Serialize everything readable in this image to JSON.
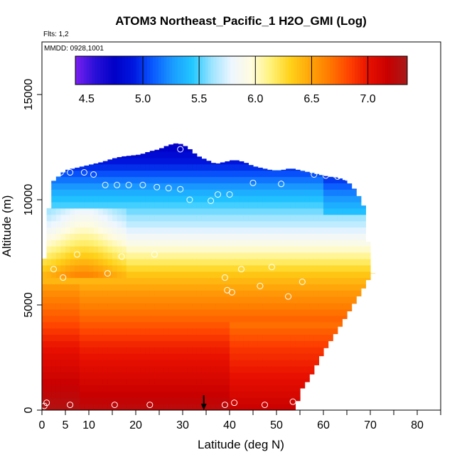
{
  "chart_data": {
    "type": "heatmap",
    "title": "ATOM3 Northeast_Pacific_1 H2O_GMI (Log)",
    "subtitle": "Flts: 1,2",
    "annotation": "MMDD: 0928,1001",
    "xlabel": "Latitude (deg N)",
    "ylabel": "Altitude (m)",
    "xlim": [
      0,
      85
    ],
    "ylim": [
      0,
      17500
    ],
    "x_ticks": [
      0,
      5,
      10,
      20,
      30,
      40,
      50,
      60,
      70,
      80
    ],
    "x_minor_ticks": [
      15,
      25,
      35,
      45,
      55,
      65,
      75,
      85
    ],
    "y_ticks": [
      0,
      5000,
      10000,
      15000
    ],
    "colorbar": {
      "min": 4.4,
      "max": 7.35,
      "ticks": [
        4.5,
        5.0,
        5.5,
        6.0,
        6.5,
        7.0
      ],
      "tick_labels": [
        "4.5",
        "5.0",
        "5.5",
        "6.0",
        "6.5",
        "7.0"
      ],
      "colors": [
        "#7a1ff0",
        "#2a10d8",
        "#0000c8",
        "#0018e0",
        "#0a5cff",
        "#1a9cff",
        "#22c8ff",
        "#9ee4ff",
        "#eef6ff",
        "#fffce0",
        "#fff27a",
        "#ffd21a",
        "#ffa60a",
        "#ff7a00",
        "#ff4400",
        "#e81000",
        "#c80000",
        "#a81a1a"
      ]
    },
    "profile_columns": [
      {
        "lat": 0.5,
        "top": 7200
      },
      {
        "lat": 1.5,
        "top": 9600
      },
      {
        "lat": 2.5,
        "top": 10900
      },
      {
        "lat": 3.5,
        "top": 11100
      },
      {
        "lat": 5,
        "top": 11400
      },
      {
        "lat": 7,
        "top": 11500
      },
      {
        "lat": 9,
        "top": 11600
      },
      {
        "lat": 11,
        "top": 11700
      },
      {
        "lat": 13,
        "top": 11800
      },
      {
        "lat": 15,
        "top": 11950
      },
      {
        "lat": 17,
        "top": 12050
      },
      {
        "lat": 19,
        "top": 12100
      },
      {
        "lat": 21,
        "top": 12150
      },
      {
        "lat": 23,
        "top": 12300
      },
      {
        "lat": 25,
        "top": 12400
      },
      {
        "lat": 27,
        "top": 12600
      },
      {
        "lat": 29,
        "top": 12700
      },
      {
        "lat": 31,
        "top": 12500
      },
      {
        "lat": 33,
        "top": 12100
      },
      {
        "lat": 35,
        "top": 11900
      },
      {
        "lat": 37,
        "top": 11700
      },
      {
        "lat": 39,
        "top": 11800
      },
      {
        "lat": 41,
        "top": 11900
      },
      {
        "lat": 43,
        "top": 11800
      },
      {
        "lat": 45,
        "top": 11600
      },
      {
        "lat": 47,
        "top": 11500
      },
      {
        "lat": 49,
        "top": 11400
      },
      {
        "lat": 51,
        "top": 11400
      },
      {
        "lat": 53,
        "top": 11500
      },
      {
        "lat": 55,
        "top": 11400
      },
      {
        "lat": 57,
        "top": 11300
      },
      {
        "lat": 59,
        "top": 11200
      },
      {
        "lat": 61,
        "top": 11100
      },
      {
        "lat": 63,
        "top": 11050
      },
      {
        "lat": 65,
        "top": 10900
      },
      {
        "lat": 67,
        "top": 10400
      },
      {
        "lat": 69,
        "top": 9500
      },
      {
        "lat": 70,
        "top": 6500
      }
    ],
    "profile_bottom_edge": [
      {
        "lat": 54,
        "alt": 0
      },
      {
        "lat": 55,
        "alt": 900
      },
      {
        "lat": 57,
        "alt": 1500
      },
      {
        "lat": 60,
        "alt": 2800
      },
      {
        "lat": 63,
        "alt": 3800
      },
      {
        "lat": 66,
        "alt": 4900
      },
      {
        "lat": 68,
        "alt": 5600
      },
      {
        "lat": 70,
        "alt": 6400
      },
      {
        "lat": 71,
        "alt": 6700
      }
    ],
    "transition_altitudes": [
      {
        "alt": 0,
        "value": 7.25
      },
      {
        "alt": 1500,
        "value": 7.1
      },
      {
        "alt": 3000,
        "value": 6.95
      },
      {
        "alt": 4200,
        "value": 6.75
      },
      {
        "alt": 5500,
        "value": 6.55
      },
      {
        "alt": 6500,
        "value": 6.35
      },
      {
        "alt": 7300,
        "value": 6.1
      },
      {
        "alt": 8000,
        "value": 5.9
      },
      {
        "alt": 8800,
        "value": 5.7
      },
      {
        "alt": 9700,
        "value": 5.5
      },
      {
        "alt": 10500,
        "value": 5.3
      },
      {
        "alt": 11300,
        "value": 5.05
      },
      {
        "alt": 12000,
        "value": 4.85
      },
      {
        "alt": 12700,
        "value": 4.7
      }
    ],
    "observation_points": [
      {
        "lat": 0.5,
        "alt": 200
      },
      {
        "lat": 1,
        "alt": 350
      },
      {
        "lat": 6,
        "alt": 250
      },
      {
        "lat": 15.5,
        "alt": 250
      },
      {
        "lat": 23,
        "alt": 250
      },
      {
        "lat": 39,
        "alt": 250
      },
      {
        "lat": 41,
        "alt": 350
      },
      {
        "lat": 47.5,
        "alt": 250
      },
      {
        "lat": 53.5,
        "alt": 400
      },
      {
        "lat": 2.5,
        "alt": 6700
      },
      {
        "lat": 4.5,
        "alt": 6300
      },
      {
        "lat": 7.5,
        "alt": 7400
      },
      {
        "lat": 14,
        "alt": 6500
      },
      {
        "lat": 17,
        "alt": 7300
      },
      {
        "lat": 24,
        "alt": 7400
      },
      {
        "lat": 39,
        "alt": 6300
      },
      {
        "lat": 39.5,
        "alt": 5700
      },
      {
        "lat": 40.5,
        "alt": 5600
      },
      {
        "lat": 42.5,
        "alt": 6700
      },
      {
        "lat": 46.5,
        "alt": 5900
      },
      {
        "lat": 49,
        "alt": 6800
      },
      {
        "lat": 52.5,
        "alt": 5400
      },
      {
        "lat": 55.5,
        "alt": 6100
      },
      {
        "lat": 2.5,
        "alt": 11900
      },
      {
        "lat": 4,
        "alt": 11300
      },
      {
        "lat": 6,
        "alt": 11300
      },
      {
        "lat": 9,
        "alt": 11300
      },
      {
        "lat": 11,
        "alt": 11200
      },
      {
        "lat": 13.5,
        "alt": 10700
      },
      {
        "lat": 16,
        "alt": 10700
      },
      {
        "lat": 18.5,
        "alt": 10700
      },
      {
        "lat": 21.5,
        "alt": 10700
      },
      {
        "lat": 24.5,
        "alt": 10600
      },
      {
        "lat": 27,
        "alt": 10550
      },
      {
        "lat": 29.5,
        "alt": 10500
      },
      {
        "lat": 31.5,
        "alt": 10000
      },
      {
        "lat": 36,
        "alt": 9950
      },
      {
        "lat": 37.5,
        "alt": 10250
      },
      {
        "lat": 40,
        "alt": 10250
      },
      {
        "lat": 45,
        "alt": 10800
      },
      {
        "lat": 51,
        "alt": 10750
      },
      {
        "lat": 58,
        "alt": 11200
      },
      {
        "lat": 60.5,
        "alt": 11150
      },
      {
        "lat": 63,
        "alt": 11100
      },
      {
        "lat": 65,
        "alt": 11050
      },
      {
        "lat": 68.5,
        "alt": 10900
      },
      {
        "lat": 11,
        "alt": 12400
      },
      {
        "lat": 19.5,
        "alt": 12550
      },
      {
        "lat": 26.5,
        "alt": 12750
      },
      {
        "lat": 29.5,
        "alt": 12400
      }
    ],
    "marker_arrow_lat": 34.5,
    "grid": false,
    "legend": "colorbar top"
  }
}
